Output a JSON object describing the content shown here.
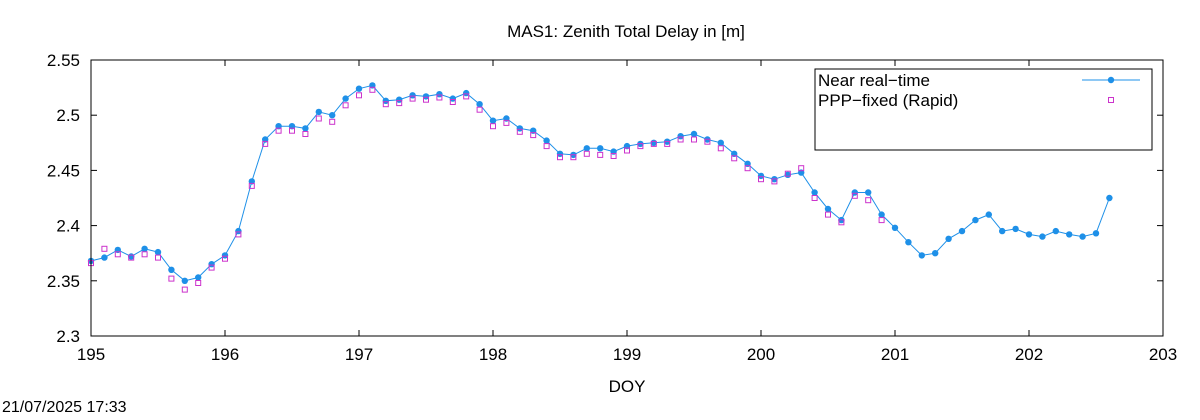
{
  "footer_timestamp": "21/07/2025 17:33",
  "chart_data": {
    "type": "line",
    "title": "MAS1: Zenith Total Delay in [m]",
    "xlabel": "DOY",
    "ylabel": "",
    "xlim": [
      195,
      203
    ],
    "ylim": [
      2.3,
      2.55
    ],
    "xticks": [
      "195",
      "196",
      "197",
      "198",
      "199",
      "200",
      "201",
      "202",
      "203"
    ],
    "yticks": [
      "2.3",
      "2.35",
      "2.4",
      "2.45",
      "2.5",
      "2.55"
    ],
    "grid": false,
    "legend_position": "top-right",
    "series": [
      {
        "name": "Near real−time",
        "color": "#1e90e8",
        "style": "line+filled-circle",
        "x": [
          195.0,
          195.1,
          195.2,
          195.3,
          195.4,
          195.5,
          195.6,
          195.7,
          195.8,
          195.9,
          196.0,
          196.1,
          196.2,
          196.3,
          196.4,
          196.5,
          196.6,
          196.7,
          196.8,
          196.9,
          197.0,
          197.1,
          197.2,
          197.3,
          197.4,
          197.5,
          197.6,
          197.7,
          197.8,
          197.9,
          198.0,
          198.1,
          198.2,
          198.3,
          198.4,
          198.5,
          198.6,
          198.7,
          198.8,
          198.9,
          199.0,
          199.1,
          199.2,
          199.3,
          199.4,
          199.5,
          199.6,
          199.7,
          199.8,
          199.9,
          200.0,
          200.1,
          200.2,
          200.3,
          200.4,
          200.5,
          200.6,
          200.7,
          200.8,
          200.9,
          201.0,
          201.1,
          201.2,
          201.3,
          201.4,
          201.5,
          201.6,
          201.7,
          201.8,
          201.9,
          202.0,
          202.1,
          202.2,
          202.3,
          202.4,
          202.5,
          202.6
        ],
        "y": [
          2.368,
          2.371,
          2.378,
          2.372,
          2.379,
          2.376,
          2.36,
          2.35,
          2.353,
          2.365,
          2.373,
          2.395,
          2.44,
          2.478,
          2.49,
          2.49,
          2.488,
          2.503,
          2.5,
          2.515,
          2.524,
          2.527,
          2.513,
          2.514,
          2.518,
          2.517,
          2.519,
          2.515,
          2.52,
          2.51,
          2.495,
          2.497,
          2.488,
          2.486,
          2.477,
          2.465,
          2.464,
          2.47,
          2.47,
          2.467,
          2.472,
          2.474,
          2.475,
          2.476,
          2.481,
          2.483,
          2.478,
          2.475,
          2.465,
          2.456,
          2.445,
          2.442,
          2.446,
          2.448,
          2.43,
          2.415,
          2.405,
          2.43,
          2.43,
          2.41,
          2.398,
          2.385,
          2.373,
          2.375,
          2.388,
          2.395,
          2.405,
          2.41,
          2.395,
          2.397,
          2.392,
          2.39,
          2.395,
          2.392,
          2.39,
          2.393,
          2.425
        ]
      },
      {
        "name": "PPP−fixed (Rapid)",
        "color": "#cc33cc",
        "style": "open-square",
        "x": [
          195.0,
          195.1,
          195.2,
          195.3,
          195.4,
          195.5,
          195.6,
          195.7,
          195.8,
          195.9,
          196.0,
          196.1,
          196.2,
          196.3,
          196.4,
          196.5,
          196.6,
          196.7,
          196.8,
          196.9,
          197.0,
          197.1,
          197.2,
          197.3,
          197.4,
          197.5,
          197.6,
          197.7,
          197.8,
          197.9,
          198.0,
          198.1,
          198.2,
          198.3,
          198.4,
          198.5,
          198.6,
          198.7,
          198.8,
          198.9,
          199.0,
          199.1,
          199.2,
          199.3,
          199.4,
          199.5,
          199.6,
          199.7,
          199.8,
          199.9,
          200.0,
          200.1,
          200.2,
          200.3,
          200.4,
          200.5,
          200.6,
          200.7,
          200.8,
          200.9
        ],
        "y": [
          2.366,
          2.379,
          2.374,
          2.371,
          2.374,
          2.371,
          2.352,
          2.342,
          2.348,
          2.362,
          2.37,
          2.392,
          2.436,
          2.474,
          2.486,
          2.486,
          2.483,
          2.497,
          2.494,
          2.509,
          2.518,
          2.523,
          2.51,
          2.511,
          2.515,
          2.514,
          2.516,
          2.512,
          2.517,
          2.505,
          2.49,
          2.493,
          2.485,
          2.482,
          2.472,
          2.462,
          2.462,
          2.465,
          2.464,
          2.463,
          2.468,
          2.472,
          2.474,
          2.474,
          2.478,
          2.478,
          2.476,
          2.47,
          2.461,
          2.452,
          2.442,
          2.44,
          2.447,
          2.452,
          2.425,
          2.41,
          2.403,
          2.427,
          2.423,
          2.405
        ]
      }
    ]
  }
}
